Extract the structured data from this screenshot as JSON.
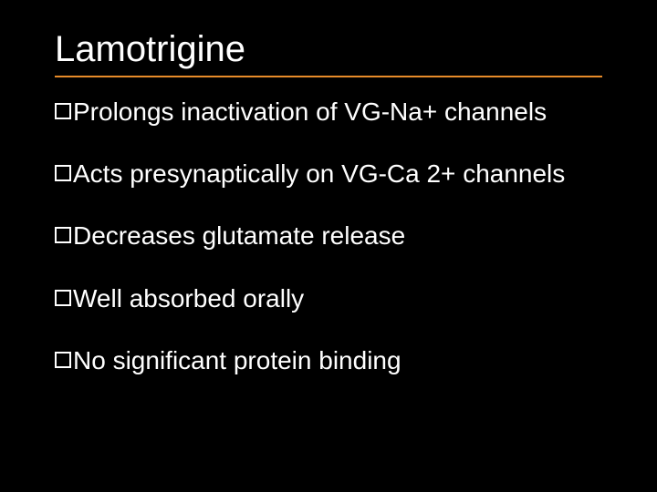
{
  "slide": {
    "title": "Lamotrigine",
    "title_color": "#ffffff",
    "title_fontsize": 40,
    "underline_color": "#e78b29",
    "background_color": "#000000",
    "bullets": [
      {
        "text": "Prolongs inactivation of VG-Na+ channels"
      },
      {
        "text": "Acts presynaptically on VG-Ca 2+ channels"
      },
      {
        "text": "Decreases glutamate release"
      },
      {
        "text": "Well absorbed orally"
      },
      {
        "text": "No significant protein binding"
      }
    ],
    "bullet_color": "#ffffff",
    "bullet_fontsize": 28,
    "bullet_box_border": "#ffffff"
  }
}
